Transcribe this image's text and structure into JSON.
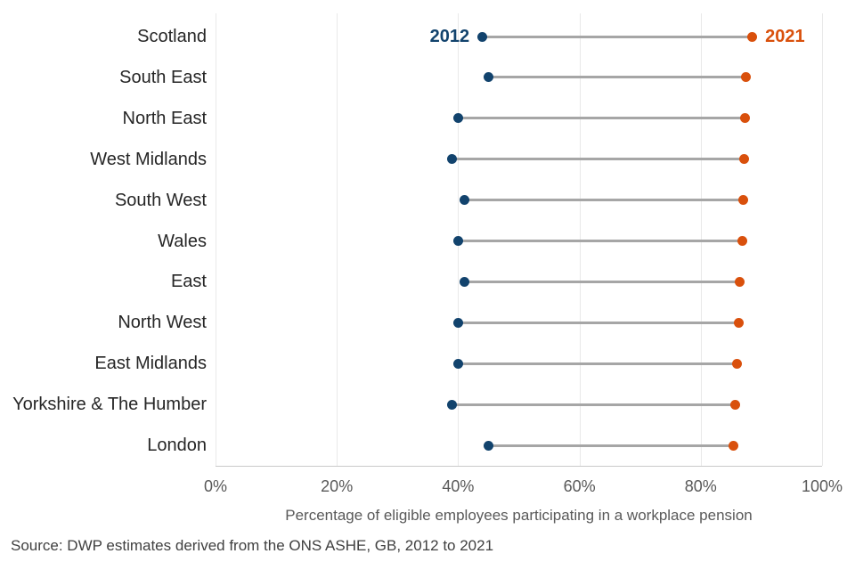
{
  "chart_data": {
    "type": "dumbbell",
    "title": "",
    "categories": [
      "Scotland",
      "South East",
      "North East",
      "West Midlands",
      "South West",
      "Wales",
      "East",
      "North West",
      "East Midlands",
      "Yorkshire & The Humber",
      "London"
    ],
    "series": [
      {
        "name": "2012",
        "color": "#12436d",
        "values": [
          44,
          45,
          40,
          39,
          41,
          40,
          41,
          40,
          40,
          39,
          45
        ]
      },
      {
        "name": "2021",
        "color": "#d9500c",
        "values": [
          88.5,
          87.5,
          87.3,
          87.1,
          87.0,
          86.9,
          86.4,
          86.3,
          86.0,
          85.7,
          85.4
        ]
      }
    ],
    "xlabel": "Percentage of eligible employees participating in a workplace pension",
    "xlim": [
      0,
      100
    ],
    "xticks": [
      {
        "value": 0,
        "label": "0%"
      },
      {
        "value": 20,
        "label": "20%"
      },
      {
        "value": 40,
        "label": "40%"
      },
      {
        "value": 60,
        "label": "60%"
      },
      {
        "value": 80,
        "label": "80%"
      },
      {
        "value": 100,
        "label": "100%"
      }
    ],
    "grid": "vertical",
    "legend_position": "inline-first-row",
    "connector_color": "#a6a6a6"
  },
  "source": {
    "text": "Source: DWP estimates derived from the ONS ASHE, GB, 2012 to 2021"
  }
}
